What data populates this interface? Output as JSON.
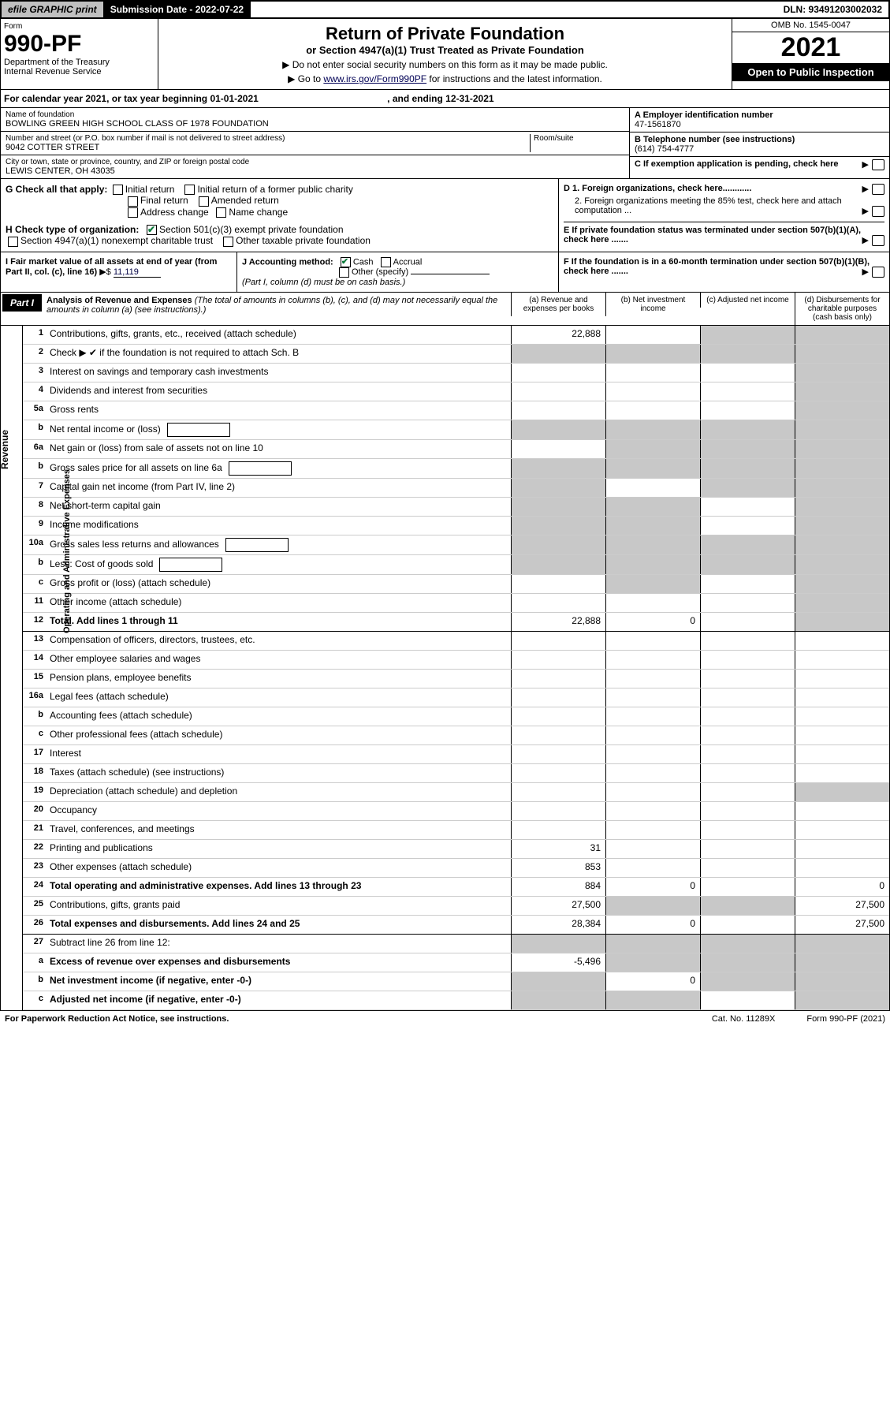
{
  "topbar": {
    "efile": "efile GRAPHIC print",
    "subdate_label": "Submission Date - 2022-07-22",
    "dln": "DLN: 93491203002032"
  },
  "header": {
    "form_label": "Form",
    "form_num": "990-PF",
    "dept": "Department of the Treasury",
    "irs": "Internal Revenue Service",
    "title": "Return of Private Foundation",
    "subtitle": "or Section 4947(a)(1) Trust Treated as Private Foundation",
    "instr1": "▶ Do not enter social security numbers on this form as it may be made public.",
    "instr2_pre": "▶ Go to ",
    "instr2_link": "www.irs.gov/Form990PF",
    "instr2_post": " for instructions and the latest information.",
    "omb": "OMB No. 1545-0047",
    "year": "2021",
    "open": "Open to Public Inspection"
  },
  "cal_year": {
    "text": "For calendar year 2021, or tax year beginning 01-01-2021",
    "ending": ", and ending 12-31-2021"
  },
  "entity": {
    "name_label": "Name of foundation",
    "name": "BOWLING GREEN HIGH SCHOOL CLASS OF 1978 FOUNDATION",
    "addr_label": "Number and street (or P.O. box number if mail is not delivered to street address)",
    "addr": "9042 COTTER STREET",
    "room_label": "Room/suite",
    "city_label": "City or town, state or province, country, and ZIP or foreign postal code",
    "city": "LEWIS CENTER, OH  43035",
    "ein_label": "A Employer identification number",
    "ein": "47-1561870",
    "phone_label": "B Telephone number (see instructions)",
    "phone": "(614) 754-4777",
    "c_label": "C If exemption application is pending, check here"
  },
  "checks": {
    "g_label": "G Check all that apply:",
    "g_opts": [
      "Initial return",
      "Initial return of a former public charity",
      "Final return",
      "Amended return",
      "Address change",
      "Name change"
    ],
    "h_label": "H Check type of organization:",
    "h1": "Section 501(c)(3) exempt private foundation",
    "h2": "Section 4947(a)(1) nonexempt charitable trust",
    "h3": "Other taxable private foundation",
    "d1": "D 1. Foreign organizations, check here............",
    "d2": "2. Foreign organizations meeting the 85% test, check here and attach computation ...",
    "e": "E  If private foundation status was terminated under section 507(b)(1)(A), check here .......",
    "i_label": "I Fair market value of all assets at end of year (from Part II, col. (c), line 16)",
    "i_val": "11,119",
    "j_label": "J Accounting method:",
    "j_cash": "Cash",
    "j_accrual": "Accrual",
    "j_other": "Other (specify)",
    "j_note": "(Part I, column (d) must be on cash basis.)",
    "f": "F  If the foundation is in a 60-month termination under section 507(b)(1)(B), check here ......."
  },
  "part1": {
    "tab": "Part I",
    "title": "Analysis of Revenue and Expenses",
    "note": " (The total of amounts in columns (b), (c), and (d) may not necessarily equal the amounts in column (a) (see instructions).)",
    "cols": [
      "(a)  Revenue and expenses per books",
      "(b)  Net investment income",
      "(c)  Adjusted net income",
      "(d)  Disbursements for charitable purposes (cash basis only)"
    ]
  },
  "rows": [
    {
      "n": "1",
      "l": "Contributions, gifts, grants, etc., received (attach schedule)",
      "a": "22,888",
      "b": "",
      "c": "",
      "d": "",
      "csh": true,
      "dsh": true
    },
    {
      "n": "2",
      "l": "Check ▶ ✔ if the foundation is not required to attach Sch. B",
      "nocols": true
    },
    {
      "n": "3",
      "l": "Interest on savings and temporary cash investments",
      "a": "",
      "b": "",
      "c": "",
      "d": "",
      "dsh": true
    },
    {
      "n": "4",
      "l": "Dividends and interest from securities",
      "a": "",
      "b": "",
      "c": "",
      "d": "",
      "dsh": true
    },
    {
      "n": "5a",
      "l": "Gross rents",
      "a": "",
      "b": "",
      "c": "",
      "d": "",
      "dsh": true
    },
    {
      "n": "b",
      "l": "Net rental income or (loss)",
      "inlinebox": true,
      "allsh": true
    },
    {
      "n": "6a",
      "l": "Net gain or (loss) from sale of assets not on line 10",
      "a": "",
      "bsh": true,
      "csh": true,
      "dsh": true
    },
    {
      "n": "b",
      "l": "Gross sales price for all assets on line 6a",
      "inlinebox": true,
      "allsh": true
    },
    {
      "n": "7",
      "l": "Capital gain net income (from Part IV, line 2)",
      "ash": true,
      "b": "",
      "csh": true,
      "dsh": true
    },
    {
      "n": "8",
      "l": "Net short-term capital gain",
      "ash": true,
      "bsh": true,
      "c": "",
      "dsh": true
    },
    {
      "n": "9",
      "l": "Income modifications",
      "ash": true,
      "bsh": true,
      "c": "",
      "dsh": true
    },
    {
      "n": "10a",
      "l": "Gross sales less returns and allowances",
      "inlinebox": true,
      "allsh": true
    },
    {
      "n": "b",
      "l": "Less: Cost of goods sold",
      "inlinebox": true,
      "allsh": true
    },
    {
      "n": "c",
      "l": "Gross profit or (loss) (attach schedule)",
      "a": "",
      "bsh": true,
      "c": "",
      "dsh": true
    },
    {
      "n": "11",
      "l": "Other income (attach schedule)",
      "a": "",
      "b": "",
      "c": "",
      "dsh": true
    },
    {
      "n": "12",
      "l": "Total. Add lines 1 through 11",
      "bold": true,
      "a": "22,888",
      "b": "0",
      "c": "",
      "dsh": true,
      "thick": true
    },
    {
      "n": "13",
      "l": "Compensation of officers, directors, trustees, etc.",
      "a": "",
      "b": "",
      "c": "",
      "d": ""
    },
    {
      "n": "14",
      "l": "Other employee salaries and wages",
      "a": "",
      "b": "",
      "c": "",
      "d": ""
    },
    {
      "n": "15",
      "l": "Pension plans, employee benefits",
      "a": "",
      "b": "",
      "c": "",
      "d": ""
    },
    {
      "n": "16a",
      "l": "Legal fees (attach schedule)",
      "a": "",
      "b": "",
      "c": "",
      "d": ""
    },
    {
      "n": "b",
      "l": "Accounting fees (attach schedule)",
      "a": "",
      "b": "",
      "c": "",
      "d": ""
    },
    {
      "n": "c",
      "l": "Other professional fees (attach schedule)",
      "a": "",
      "b": "",
      "c": "",
      "d": ""
    },
    {
      "n": "17",
      "l": "Interest",
      "a": "",
      "b": "",
      "c": "",
      "d": ""
    },
    {
      "n": "18",
      "l": "Taxes (attach schedule) (see instructions)",
      "a": "",
      "b": "",
      "c": "",
      "d": ""
    },
    {
      "n": "19",
      "l": "Depreciation (attach schedule) and depletion",
      "a": "",
      "b": "",
      "c": "",
      "dsh": true
    },
    {
      "n": "20",
      "l": "Occupancy",
      "a": "",
      "b": "",
      "c": "",
      "d": ""
    },
    {
      "n": "21",
      "l": "Travel, conferences, and meetings",
      "a": "",
      "b": "",
      "c": "",
      "d": ""
    },
    {
      "n": "22",
      "l": "Printing and publications",
      "a": "31",
      "b": "",
      "c": "",
      "d": ""
    },
    {
      "n": "23",
      "l": "Other expenses (attach schedule)",
      "a": "853",
      "b": "",
      "c": "",
      "d": ""
    },
    {
      "n": "24",
      "l": "Total operating and administrative expenses. Add lines 13 through 23",
      "bold": true,
      "a": "884",
      "b": "0",
      "c": "",
      "d": "0"
    },
    {
      "n": "25",
      "l": "Contributions, gifts, grants paid",
      "a": "27,500",
      "bsh": true,
      "csh": true,
      "d": "27,500"
    },
    {
      "n": "26",
      "l": "Total expenses and disbursements. Add lines 24 and 25",
      "bold": true,
      "a": "28,384",
      "b": "0",
      "c": "",
      "d": "27,500",
      "thick": true
    },
    {
      "n": "27",
      "l": "Subtract line 26 from line 12:",
      "allsh": true
    },
    {
      "n": "a",
      "l": "Excess of revenue over expenses and disbursements",
      "bold": true,
      "a": "-5,496",
      "bsh": true,
      "csh": true,
      "dsh": true
    },
    {
      "n": "b",
      "l": "Net investment income (if negative, enter -0-)",
      "bold": true,
      "ash": true,
      "b": "0",
      "csh": true,
      "dsh": true
    },
    {
      "n": "c",
      "l": "Adjusted net income (if negative, enter -0-)",
      "bold": true,
      "ash": true,
      "bsh": true,
      "c": "",
      "dsh": true
    }
  ],
  "foot": {
    "left": "For Paperwork Reduction Act Notice, see instructions.",
    "mid": "Cat. No. 11289X",
    "right": "Form 990-PF (2021)"
  }
}
